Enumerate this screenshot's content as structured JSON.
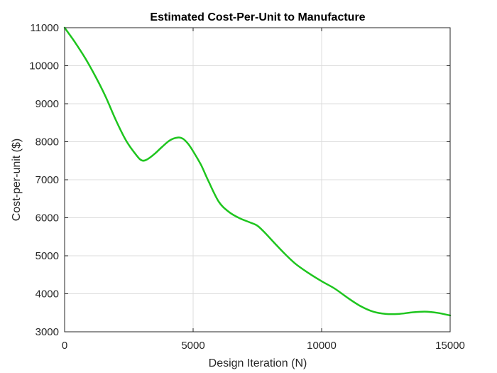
{
  "chart_data": {
    "type": "line",
    "title": "Estimated Cost-Per-Unit to Manufacture",
    "xlabel": "Design Iteration (N)",
    "ylabel": "Cost-per-unit ($)",
    "xlim": [
      0,
      15000
    ],
    "ylim": [
      3000,
      11000
    ],
    "xticks": [
      0,
      5000,
      10000,
      15000
    ],
    "yticks": [
      3000,
      4000,
      5000,
      6000,
      7000,
      8000,
      9000,
      10000,
      11000
    ],
    "grid": true,
    "series": [
      {
        "color": "#1ec51e",
        "x": [
          0,
          400,
          800,
          1200,
          1600,
          2000,
          2400,
          2800,
          3000,
          3200,
          3500,
          3800,
          4100,
          4400,
          4600,
          4800,
          5000,
          5300,
          5600,
          6000,
          6400,
          6800,
          7200,
          7500,
          7800,
          8200,
          8600,
          9000,
          9500,
          10000,
          10500,
          11000,
          11500,
          12000,
          12500,
          13000,
          13500,
          14000,
          14500,
          15000
        ],
        "y": [
          11000,
          10620,
          10200,
          9720,
          9180,
          8560,
          8020,
          7640,
          7510,
          7530,
          7680,
          7870,
          8040,
          8110,
          8080,
          7950,
          7750,
          7400,
          6960,
          6420,
          6150,
          5990,
          5880,
          5790,
          5600,
          5310,
          5030,
          4780,
          4540,
          4330,
          4140,
          3900,
          3680,
          3530,
          3470,
          3470,
          3510,
          3530,
          3500,
          3430
        ]
      }
    ]
  }
}
